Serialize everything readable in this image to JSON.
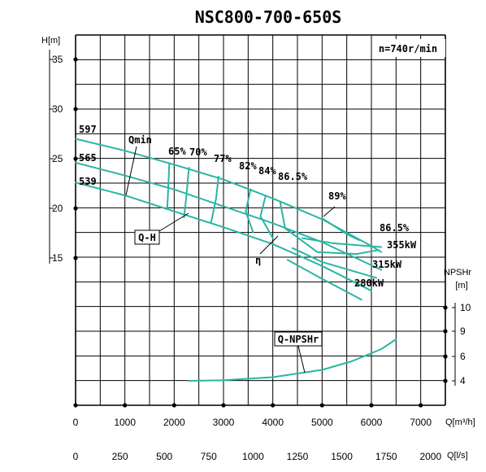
{
  "title": "NSC800-700-650S",
  "speed_label": "n=740r/min",
  "axis_labels": {
    "head": "H[m]",
    "npsh": "NPSHr",
    "npsh_unit": "[m]",
    "flow_m3h": "Q[m³/h]",
    "flow_ls": "Q[l/s]"
  },
  "colors": {
    "curve": "#2bb5a3",
    "grid": "#000000"
  },
  "chart_data": {
    "type": "line",
    "xlabel": "Q[m³/h]",
    "ylabel": "H[m]",
    "x_ticks_m3h": [
      "0",
      "1000",
      "2000",
      "3000",
      "4000",
      "5000",
      "6000",
      "7000"
    ],
    "x_ticks_ls": [
      "0",
      "250",
      "500",
      "750",
      "1000",
      "1250",
      "1500",
      "1750",
      "2000"
    ],
    "head_ticks": [
      "35",
      "30",
      "25",
      "20",
      "15"
    ],
    "npsh_ticks": [
      "10",
      "9",
      "6",
      "4"
    ],
    "xlim_m3h": [
      0,
      7500
    ],
    "grid": true,
    "head_curves": [
      {
        "label": "597",
        "points": [
          [
            0,
            27.0
          ],
          [
            1000,
            25.8
          ],
          [
            2000,
            24.4
          ],
          [
            3000,
            22.9
          ],
          [
            4000,
            21.0
          ],
          [
            5000,
            18.9
          ],
          [
            6000,
            16.2
          ],
          [
            6200,
            15.6
          ]
        ]
      },
      {
        "label": "565",
        "points": [
          [
            0,
            24.6
          ],
          [
            1000,
            23.3
          ],
          [
            2000,
            21.9
          ],
          [
            3000,
            20.2
          ],
          [
            4000,
            18.5
          ],
          [
            5000,
            16.6
          ],
          [
            6200,
            13.8
          ]
        ]
      },
      {
        "label": "539",
        "points": [
          [
            0,
            22.6
          ],
          [
            1000,
            21.3
          ],
          [
            2000,
            19.7
          ],
          [
            3000,
            18.1
          ],
          [
            4000,
            16.4
          ],
          [
            5000,
            14.2
          ],
          [
            6000,
            11.7
          ]
        ]
      }
    ],
    "efficiency_contours": [
      {
        "label": "65%",
        "points": [
          [
            1900,
            24.5
          ],
          [
            1880,
            22.2
          ],
          [
            1860,
            20.0
          ]
        ]
      },
      {
        "label": "70%",
        "points": [
          [
            2300,
            24.1
          ],
          [
            2250,
            21.4
          ],
          [
            2200,
            19.1
          ]
        ]
      },
      {
        "label": "77%",
        "points": [
          [
            2900,
            23.2
          ],
          [
            2850,
            21.0
          ],
          [
            2750,
            18.6
          ]
        ]
      },
      {
        "label": "82%",
        "points": [
          [
            3550,
            21.9
          ],
          [
            3450,
            19.7
          ],
          [
            3600,
            17.6
          ]
        ]
      },
      {
        "label": "84%",
        "points": [
          [
            3850,
            21.2
          ],
          [
            3750,
            19.2
          ],
          [
            4000,
            17.0
          ]
        ]
      },
      {
        "label": "86.5%",
        "points": [
          [
            4150,
            20.6
          ],
          [
            4250,
            18.0
          ],
          [
            4900,
            15.6
          ],
          [
            5700,
            15.4
          ],
          [
            6150,
            15.8
          ]
        ]
      },
      {
        "label": "89%",
        "points": [
          [
            5000,
            19.0
          ],
          [
            5500,
            17.4
          ],
          [
            5750,
            16.8
          ]
        ]
      }
    ],
    "power_curves": [
      {
        "label": "355kW",
        "points": [
          [
            4600,
            17.0
          ],
          [
            5200,
            16.5
          ],
          [
            6200,
            16.1
          ]
        ]
      },
      {
        "label": "315kW",
        "points": [
          [
            4400,
            16.0
          ],
          [
            5000,
            14.6
          ],
          [
            6100,
            13.0
          ]
        ]
      },
      {
        "label": "280kW",
        "points": [
          [
            4300,
            14.8
          ],
          [
            5000,
            12.9
          ],
          [
            5800,
            10.8
          ]
        ]
      }
    ],
    "npshr_curve": {
      "label": "Q-NPSHr",
      "points": [
        [
          2300,
          4.0
        ],
        [
          3000,
          4.05
        ],
        [
          4000,
          4.3
        ],
        [
          5000,
          4.9
        ],
        [
          5600,
          5.6
        ],
        [
          6200,
          6.6
        ],
        [
          6500,
          7.4
        ]
      ]
    },
    "annotations": [
      "Qmin",
      "Q-H",
      "η",
      "Q-NPSHr",
      "86.5%"
    ]
  }
}
